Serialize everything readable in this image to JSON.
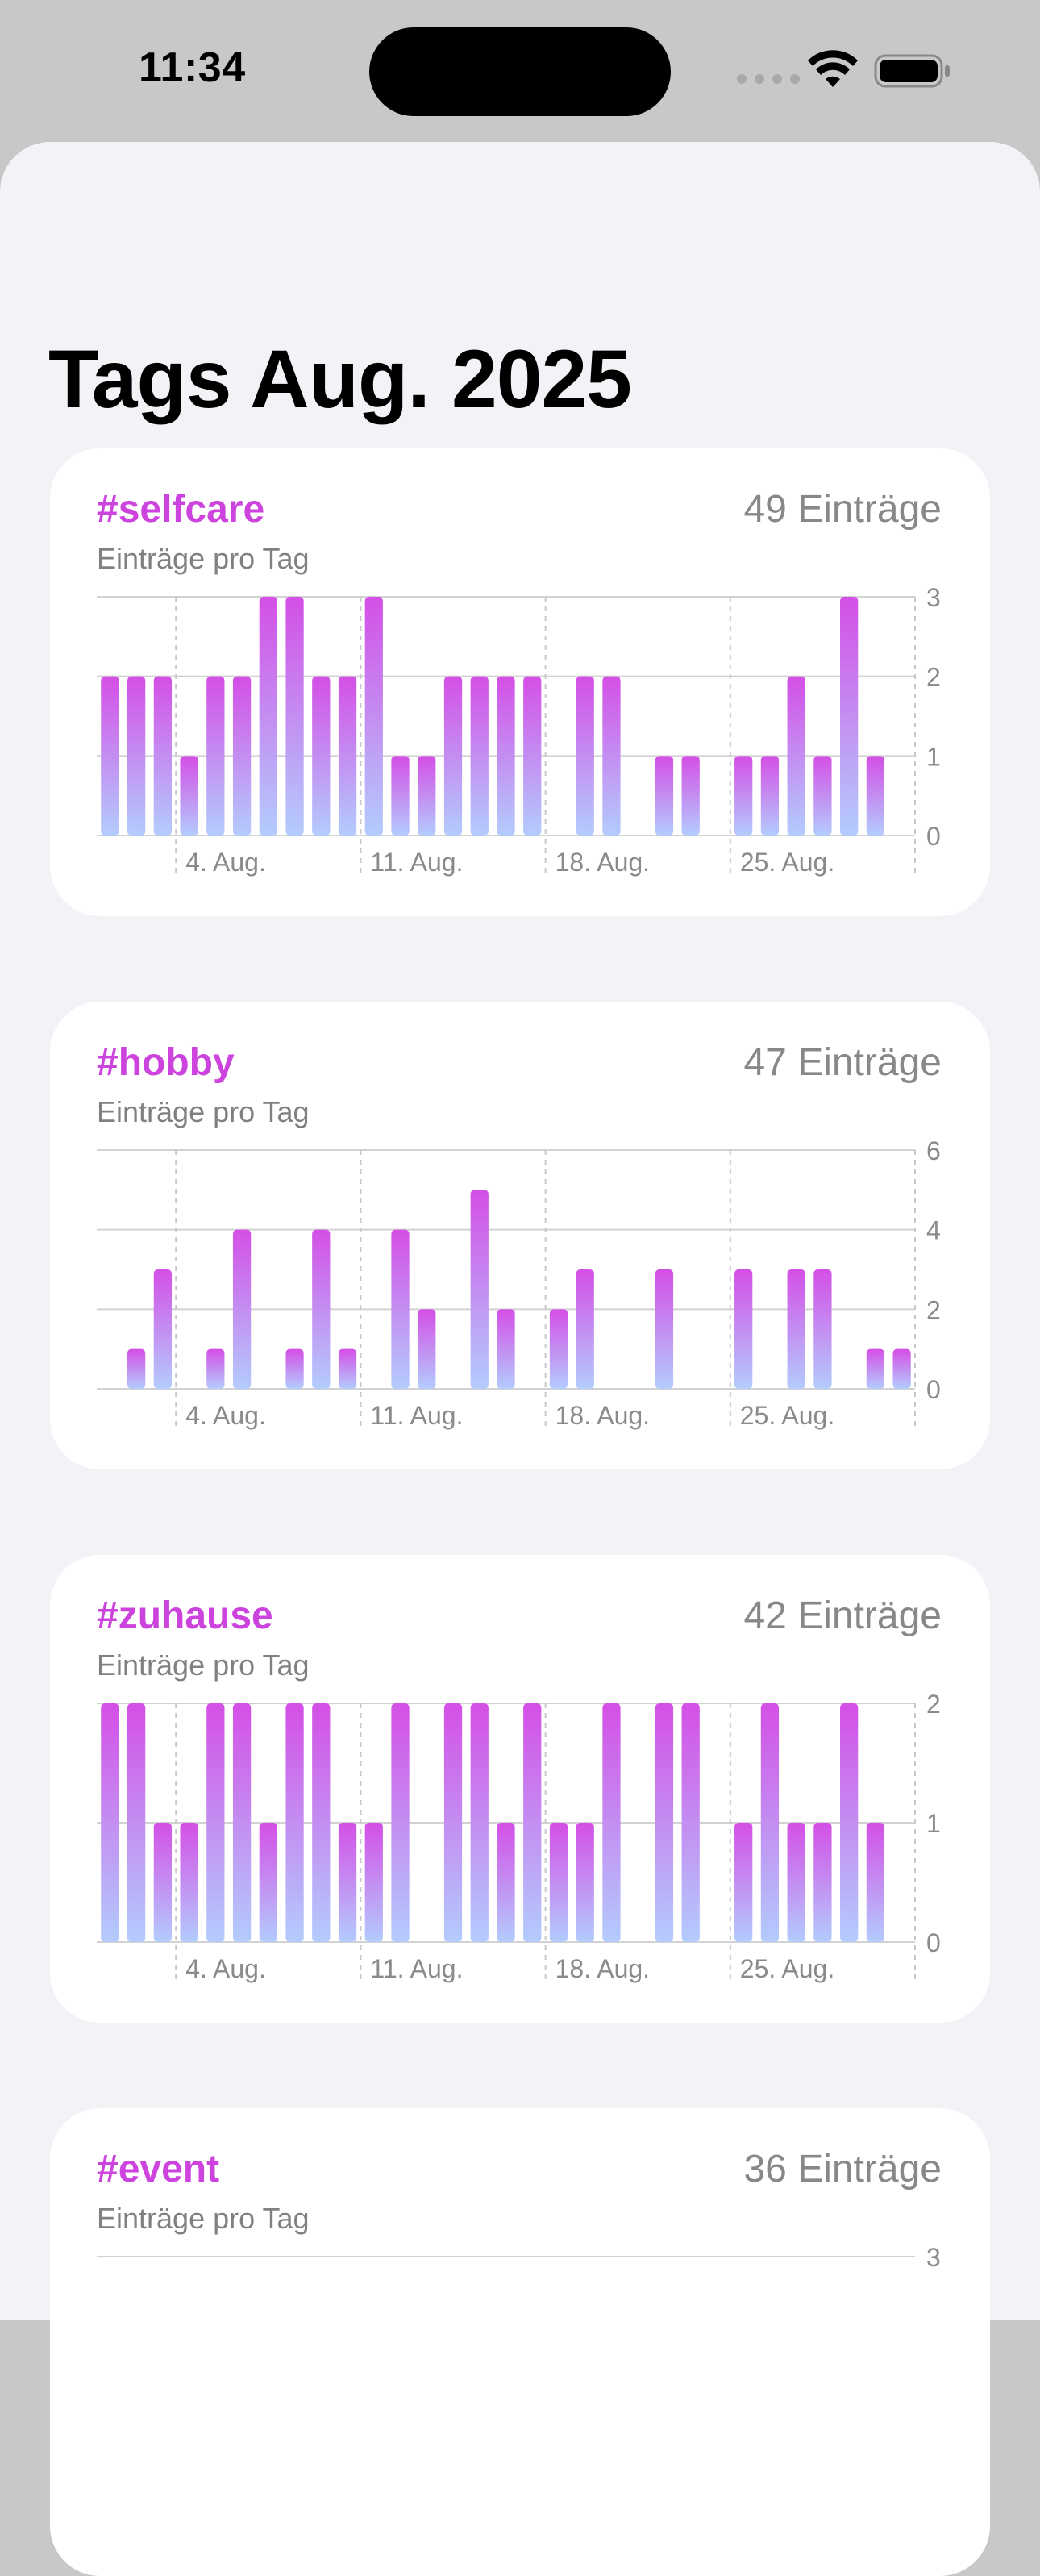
{
  "status_bar": {
    "time": "11:34"
  },
  "page": {
    "title": "Tags Aug. 2025"
  },
  "accent_color": "#cc44dd",
  "bar_gradient": {
    "top": "#d44fe6",
    "bottom": "#b3ccfd"
  },
  "cards": [
    {
      "tag": "#selfcare",
      "count_label": "49 Einträge",
      "subtitle": "Einträge pro Tag"
    },
    {
      "tag": "#hobby",
      "count_label": "47 Einträge",
      "subtitle": "Einträge pro Tag"
    },
    {
      "tag": "#zuhause",
      "count_label": "42 Einträge",
      "subtitle": "Einträge pro Tag"
    },
    {
      "tag": "#event",
      "count_label": "36 Einträge",
      "subtitle": "Einträge pro Tag"
    }
  ],
  "chart_data": [
    {
      "type": "bar",
      "x": [
        1,
        2,
        3,
        4,
        5,
        6,
        7,
        8,
        9,
        10,
        11,
        12,
        13,
        14,
        15,
        16,
        17,
        18,
        19,
        20,
        21,
        22,
        23,
        24,
        25,
        26,
        27,
        28,
        29,
        30,
        31
      ],
      "values": [
        2,
        2,
        2,
        1,
        2,
        2,
        3,
        3,
        2,
        2,
        3,
        1,
        1,
        2,
        2,
        2,
        2,
        0,
        2,
        2,
        0,
        1,
        1,
        0,
        1,
        1,
        2,
        1,
        3,
        1,
        0
      ],
      "x_tick_labels": [
        "4. Aug.",
        "11. Aug.",
        "18. Aug.",
        "25. Aug."
      ],
      "x_tick_days": [
        4,
        11,
        18,
        25
      ],
      "y_ticks": [
        0,
        1,
        2,
        3
      ],
      "ylim": [
        0,
        3
      ],
      "grid": true
    },
    {
      "type": "bar",
      "x": [
        1,
        2,
        3,
        4,
        5,
        6,
        7,
        8,
        9,
        10,
        11,
        12,
        13,
        14,
        15,
        16,
        17,
        18,
        19,
        20,
        21,
        22,
        23,
        24,
        25,
        26,
        27,
        28,
        29,
        30,
        31
      ],
      "values": [
        0,
        1,
        3,
        0,
        1,
        4,
        0,
        1,
        4,
        1,
        0,
        4,
        2,
        0,
        5,
        2,
        0,
        2,
        3,
        0,
        0,
        3,
        0,
        0,
        3,
        0,
        3,
        3,
        0,
        1,
        1
      ],
      "x_tick_labels": [
        "4. Aug.",
        "11. Aug.",
        "18. Aug.",
        "25. Aug."
      ],
      "x_tick_days": [
        4,
        11,
        18,
        25
      ],
      "y_ticks": [
        0,
        2,
        4,
        6
      ],
      "ylim": [
        0,
        6
      ],
      "grid": true
    },
    {
      "type": "bar",
      "x": [
        1,
        2,
        3,
        4,
        5,
        6,
        7,
        8,
        9,
        10,
        11,
        12,
        13,
        14,
        15,
        16,
        17,
        18,
        19,
        20,
        21,
        22,
        23,
        24,
        25,
        26,
        27,
        28,
        29,
        30,
        31
      ],
      "values": [
        2,
        2,
        1,
        1,
        2,
        2,
        1,
        2,
        2,
        1,
        1,
        2,
        0,
        2,
        2,
        1,
        2,
        1,
        1,
        2,
        0,
        2,
        2,
        0,
        1,
        2,
        1,
        1,
        2,
        1,
        0
      ],
      "x_tick_labels": [
        "4. Aug.",
        "11. Aug.",
        "18. Aug.",
        "25. Aug."
      ],
      "x_tick_days": [
        4,
        11,
        18,
        25
      ],
      "y_ticks": [
        0,
        1,
        2
      ],
      "ylim": [
        0,
        2
      ],
      "grid": true
    },
    {
      "type": "bar",
      "y_ticks": [
        3
      ],
      "ylim": [
        0,
        3
      ],
      "grid": true
    }
  ]
}
